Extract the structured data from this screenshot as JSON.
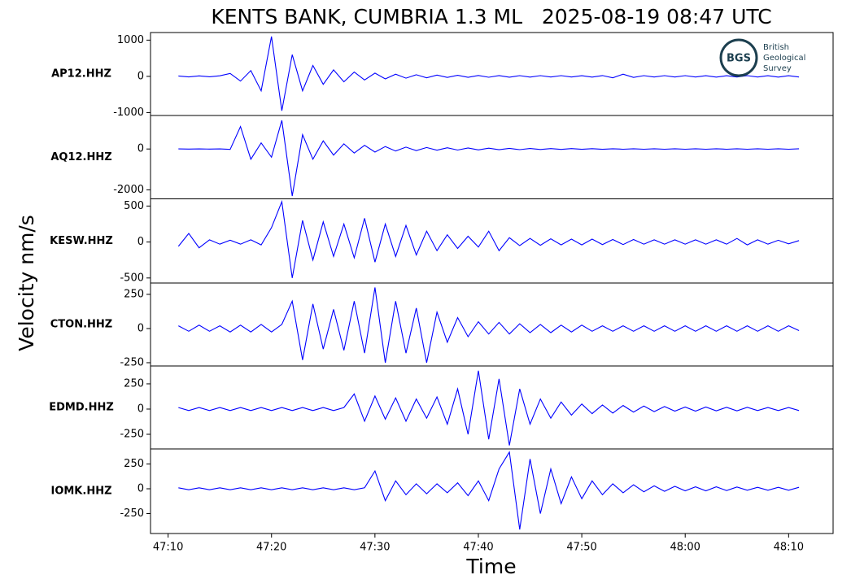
{
  "chart_data": {
    "type": "line",
    "title": "KENTS BANK, CUMBRIA 1.3 ML   2025-08-19 08:47 UTC",
    "xlabel": "Time",
    "ylabel": "Velocity nm/s",
    "xlim": [
      8.3,
      74.3
    ],
    "xticks": [
      {
        "value": 10,
        "label": "47:10"
      },
      {
        "value": 20,
        "label": "47:20"
      },
      {
        "value": 30,
        "label": "47:30"
      },
      {
        "value": 40,
        "label": "47:40"
      },
      {
        "value": 50,
        "label": "47:50"
      },
      {
        "value": 60,
        "label": "48:00"
      },
      {
        "value": 70,
        "label": "48:10"
      }
    ],
    "x": [
      11,
      12,
      13,
      14,
      15,
      16,
      17,
      18,
      19,
      20,
      21,
      22,
      23,
      24,
      25,
      26,
      27,
      28,
      29,
      30,
      31,
      32,
      33,
      34,
      35,
      36,
      37,
      38,
      39,
      40,
      41,
      42,
      43,
      44,
      45,
      46,
      47,
      48,
      49,
      50,
      51,
      52,
      53,
      54,
      55,
      56,
      57,
      58,
      59,
      60,
      61,
      62,
      63,
      64,
      65,
      66,
      67,
      68,
      69,
      70,
      71
    ],
    "panels": [
      {
        "label": "AP12.HHZ",
        "ylim": [
          -1080,
          1210
        ],
        "yticks": [
          -1000,
          0,
          1000
        ],
        "series": [
          {
            "color": "#0000ff",
            "values": [
              12,
              -15,
              14,
              -12,
              15,
              80,
              -130,
              160,
              -400,
              1100,
              -950,
              600,
              -400,
              300,
              -220,
              180,
              -150,
              120,
              -100,
              90,
              -70,
              60,
              -50,
              45,
              -40,
              35,
              -30,
              30,
              -28,
              25,
              -25,
              22,
              -22,
              20,
              -20,
              20,
              -18,
              20,
              -18,
              18,
              -20,
              22,
              -40,
              60,
              -30,
              20,
              -18,
              20,
              -18,
              20,
              -18,
              18,
              -20,
              18,
              -18,
              20,
              -18,
              18,
              -20,
              18,
              -18
            ]
          }
        ]
      },
      {
        "label": "AQ12.HHZ",
        "ylim": [
          -2440,
          1640
        ],
        "yticks": [
          -2000,
          0
        ],
        "series": [
          {
            "color": "#0000ff",
            "values": [
              5,
              -5,
              5,
              -5,
              5,
              -20,
              1100,
              -500,
              300,
              -400,
              1400,
              -2300,
              700,
              -500,
              400,
              -300,
              250,
              -200,
              180,
              -150,
              120,
              -100,
              90,
              -80,
              70,
              -60,
              60,
              -50,
              50,
              -45,
              40,
              -35,
              30,
              -30,
              25,
              -25,
              20,
              -20,
              20,
              -15,
              15,
              -15,
              12,
              -12,
              12,
              -10,
              10,
              -10,
              10,
              -10,
              10,
              -10,
              10,
              -10,
              10,
              -10,
              10,
              -10,
              10,
              -10,
              10
            ]
          }
        ]
      },
      {
        "label": "KESW.HHZ",
        "ylim": [
          -570,
          600
        ],
        "yticks": [
          -500,
          0,
          500
        ],
        "series": [
          {
            "color": "#0000ff",
            "values": [
              -60,
              120,
              -80,
              30,
              -30,
              25,
              -30,
              30,
              -40,
              200,
              560,
              -500,
              300,
              -250,
              280,
              -200,
              250,
              -220,
              330,
              -280,
              250,
              -200,
              230,
              -180,
              150,
              -120,
              100,
              -90,
              80,
              -70,
              150,
              -120,
              60,
              -50,
              50,
              -45,
              45,
              -40,
              40,
              -40,
              40,
              -35,
              35,
              -35,
              35,
              -30,
              30,
              -30,
              30,
              -30,
              30,
              -30,
              30,
              -30,
              50,
              -40,
              30,
              -30,
              25,
              -25,
              20
            ]
          }
        ]
      },
      {
        "label": "CTON.HHZ",
        "ylim": [
          -274,
          333
        ],
        "yticks": [
          -250,
          0,
          250
        ],
        "series": [
          {
            "color": "#0000ff",
            "values": [
              20,
              -20,
              25,
              -20,
              20,
              -25,
              25,
              -25,
              30,
              -25,
              30,
              200,
              -230,
              180,
              -150,
              140,
              -160,
              200,
              -180,
              300,
              -250,
              200,
              -180,
              150,
              -250,
              120,
              -100,
              80,
              -60,
              50,
              -40,
              45,
              -40,
              35,
              -30,
              30,
              -30,
              25,
              -25,
              25,
              -20,
              20,
              -20,
              20,
              -20,
              20,
              -20,
              20,
              -20,
              20,
              -20,
              20,
              -20,
              20,
              -20,
              20,
              -20,
              20,
              -20,
              20,
              -15
            ]
          }
        ]
      },
      {
        "label": "EDMD.HHZ",
        "ylim": [
          -395,
          427
        ],
        "yticks": [
          -250,
          0,
          250
        ],
        "series": [
          {
            "color": "#0000ff",
            "values": [
              15,
              -15,
              15,
              -15,
              15,
              -15,
              15,
              -15,
              15,
              -15,
              15,
              -15,
              15,
              -15,
              15,
              -15,
              15,
              150,
              -120,
              130,
              -100,
              110,
              -120,
              100,
              -90,
              120,
              -150,
              200,
              -250,
              380,
              -300,
              300,
              -360,
              200,
              -150,
              100,
              -90,
              70,
              -60,
              50,
              -45,
              40,
              -40,
              35,
              -30,
              30,
              -25,
              25,
              -20,
              20,
              -20,
              20,
              -18,
              18,
              -18,
              18,
              -15,
              15,
              -15,
              15,
              -15
            ]
          }
        ]
      },
      {
        "label": "IOMK.HHZ",
        "ylim": [
          -451,
          402
        ],
        "yticks": [
          -250,
          0,
          250
        ],
        "series": [
          {
            "color": "#0000ff",
            "values": [
              10,
              -10,
              10,
              -10,
              10,
              -10,
              10,
              -10,
              10,
              -10,
              10,
              -10,
              10,
              -10,
              10,
              -10,
              10,
              -10,
              10,
              180,
              -120,
              80,
              -60,
              50,
              -50,
              50,
              -40,
              60,
              -70,
              80,
              -120,
              200,
              370,
              -410,
              300,
              -250,
              200,
              -150,
              120,
              -100,
              80,
              -60,
              50,
              -40,
              40,
              -30,
              30,
              -25,
              25,
              -20,
              20,
              -20,
              20,
              -18,
              18,
              -15,
              15,
              -15,
              15,
              -15,
              15
            ]
          }
        ]
      }
    ]
  },
  "logo": {
    "mark": "BGS",
    "lines": [
      "British",
      "Geological",
      "Survey"
    ]
  }
}
